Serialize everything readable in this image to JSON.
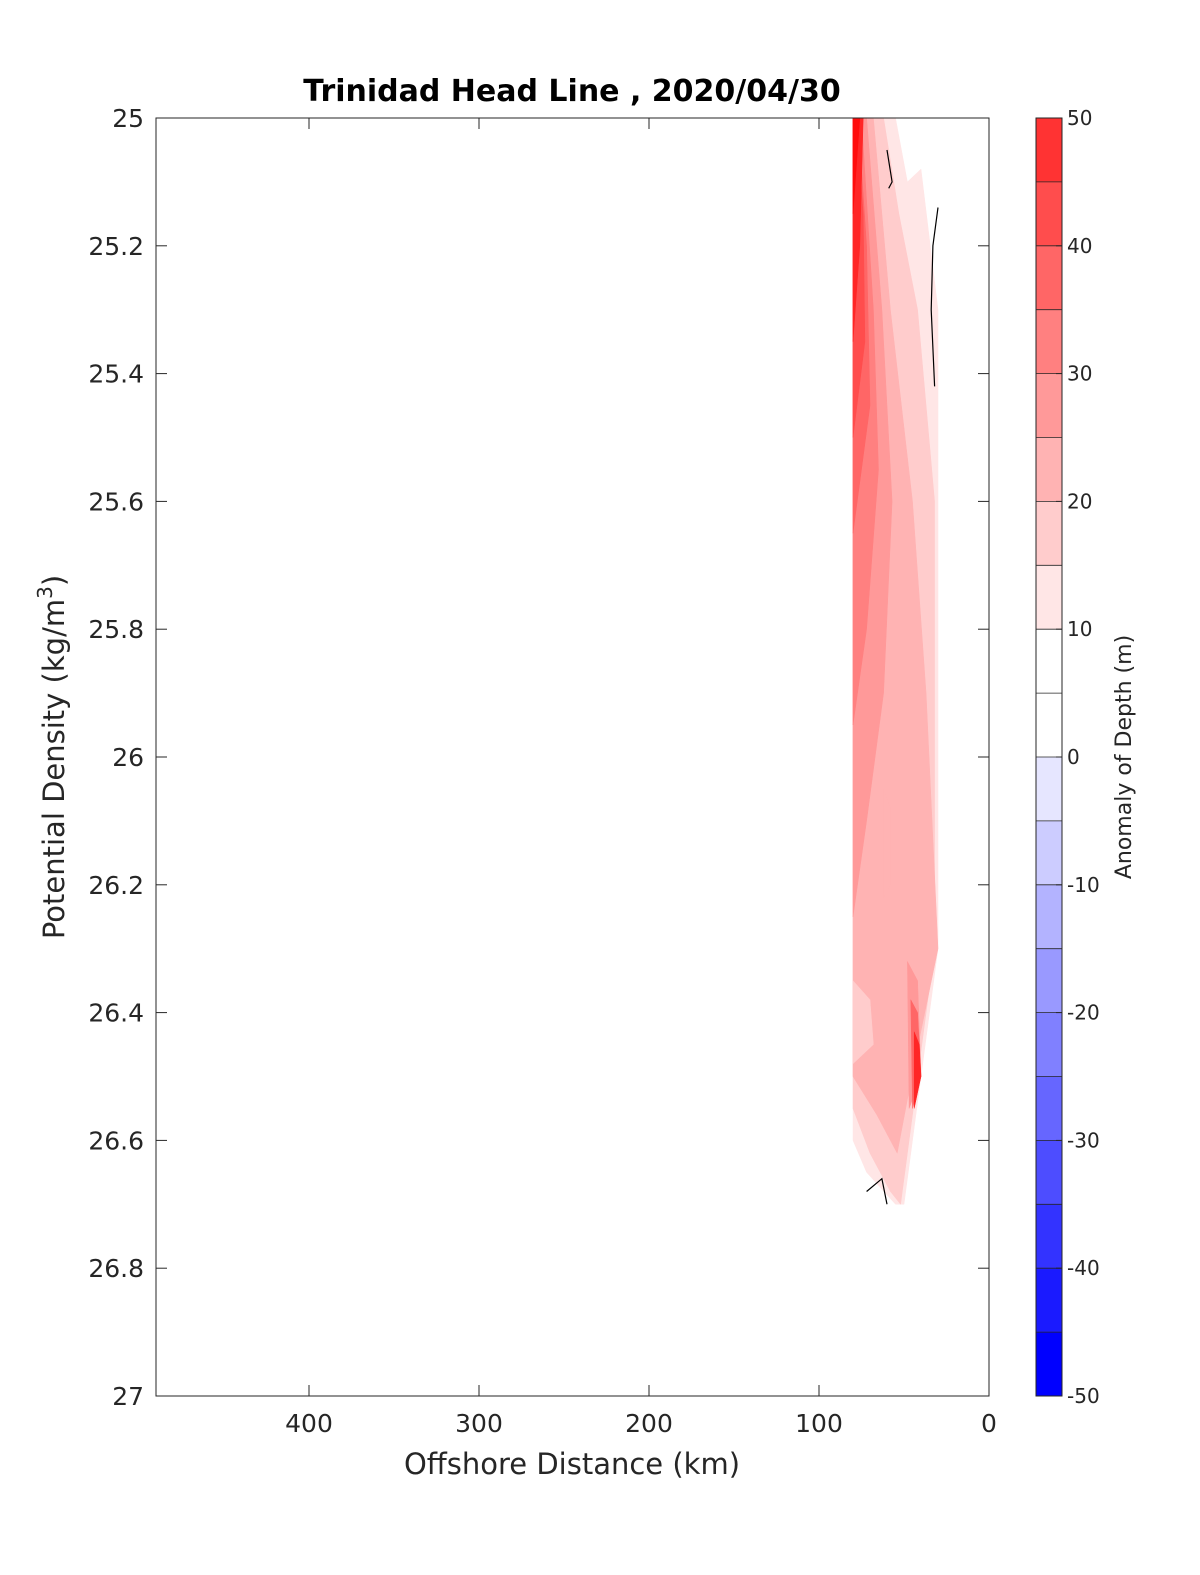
{
  "chart_data": {
    "type": "contour",
    "title": "Trinidad Head Line , 2020/04/30",
    "xlabel": "Offshore Distance (km)",
    "ylabel_main": "Potential Density (kg/m",
    "ylabel_sup": "3",
    "ylabel_end": ")",
    "colorbar_label": "Anomaly of Depth (m)",
    "xlim": [
      490,
      0
    ],
    "ylim": [
      27,
      25
    ],
    "x_reversed": true,
    "y_reversed": true,
    "x_ticks": [
      400,
      300,
      200,
      100,
      0
    ],
    "x_tick_labels": [
      "400",
      "300",
      "200",
      "100",
      "0"
    ],
    "y_ticks": [
      25,
      25.2,
      25.4,
      25.6,
      25.8,
      26,
      26.2,
      26.4,
      26.6,
      26.8,
      27
    ],
    "y_tick_labels": [
      "25",
      "25.2",
      "25.4",
      "25.6",
      "25.8",
      "26",
      "26.2",
      "26.4",
      "26.6",
      "26.8",
      "27"
    ],
    "colorbar": {
      "clim": [
        -50,
        50
      ],
      "levels": [
        -50,
        -45,
        -40,
        -35,
        -30,
        -25,
        -20,
        -15,
        -10,
        -5,
        0,
        5,
        10,
        15,
        20,
        25,
        30,
        35,
        40,
        45,
        50
      ],
      "colors": [
        "#0000ff",
        "#1a1aff",
        "#3333ff",
        "#4d4dff",
        "#6666ff",
        "#8080ff",
        "#9999ff",
        "#b3b3ff",
        "#ccccff",
        "#e6e6ff",
        "#ffffff",
        "#ffffff",
        "#ffe6e6",
        "#ffcccc",
        "#ffb3b3",
        "#ff9999",
        "#ff8080",
        "#ff6666",
        "#ff4d4d",
        "#ff3333",
        "#ff1a1a",
        "#ff0000"
      ],
      "tick_values": [
        50,
        40,
        30,
        20,
        10,
        0,
        -10,
        -20,
        -30,
        -40,
        -50
      ],
      "tick_labels": [
        "50",
        "40",
        "30",
        "20",
        "10",
        "0",
        "-10",
        "-20",
        "-30",
        "-40",
        "-50"
      ]
    },
    "bands": [
      {
        "level": 10,
        "color": "#ffe6e6",
        "polygon": [
          [
            80,
            25.0
          ],
          [
            55,
            25.0
          ],
          [
            48,
            25.1
          ],
          [
            40,
            25.08
          ],
          [
            30,
            25.3
          ],
          [
            30,
            26.3
          ],
          [
            40,
            26.5
          ],
          [
            50,
            26.7
          ],
          [
            55,
            26.7
          ],
          [
            72,
            26.65
          ],
          [
            80,
            26.6
          ]
        ]
      },
      {
        "level": 15,
        "color": "#ffcccc",
        "polygon": [
          [
            80,
            25.0
          ],
          [
            62,
            25.0
          ],
          [
            53,
            25.15
          ],
          [
            42,
            25.3
          ],
          [
            32,
            25.6
          ],
          [
            32,
            26.3
          ],
          [
            42,
            26.5
          ],
          [
            52,
            26.7
          ],
          [
            58,
            26.68
          ],
          [
            70,
            26.62
          ],
          [
            80,
            26.55
          ]
        ]
      },
      {
        "level": 20,
        "color": "#ffb3b3",
        "polygon": [
          [
            80,
            25.0
          ],
          [
            68,
            25.0
          ],
          [
            58,
            25.3
          ],
          [
            45,
            25.6
          ],
          [
            37,
            25.9
          ],
          [
            30,
            26.3
          ],
          [
            44,
            26.48
          ],
          [
            54,
            26.62
          ],
          [
            66,
            26.56
          ],
          [
            80,
            26.5
          ]
        ]
      },
      {
        "level": 25,
        "color": "#ff9999",
        "polygon": [
          [
            80,
            25.0
          ],
          [
            72,
            25.0
          ],
          [
            63,
            25.3
          ],
          [
            57,
            25.6
          ],
          [
            62,
            25.9
          ],
          [
            72,
            26.1
          ],
          [
            80,
            26.25
          ]
        ]
      },
      {
        "level": 30,
        "color": "#ff8080",
        "polygon": [
          [
            80,
            25.0
          ],
          [
            75,
            25.0
          ],
          [
            68,
            25.3
          ],
          [
            65,
            25.55
          ],
          [
            72,
            25.8
          ],
          [
            80,
            25.95
          ]
        ]
      },
      {
        "level": 35,
        "color": "#ff6666",
        "polygon": [
          [
            80,
            25.0
          ],
          [
            77,
            25.0
          ],
          [
            72,
            25.2
          ],
          [
            70,
            25.45
          ],
          [
            80,
            25.65
          ]
        ]
      },
      {
        "level": 40,
        "color": "#ff4d4d",
        "polygon": [
          [
            80,
            25.0
          ],
          [
            78,
            25.0
          ],
          [
            74,
            25.15
          ],
          [
            73,
            25.35
          ],
          [
            80,
            25.5
          ]
        ]
      },
      {
        "level": 45,
        "color": "#ff2626",
        "polygon": [
          [
            80,
            25.0
          ],
          [
            74,
            25.0
          ],
          [
            76,
            25.2
          ],
          [
            80,
            25.35
          ]
        ]
      },
      {
        "level": 50,
        "color": "#ff0d0d",
        "polygon": [
          [
            80,
            25.0
          ],
          [
            76,
            25.0
          ],
          [
            80,
            25.15
          ]
        ]
      },
      {
        "level": 15,
        "color": "#ffcccc",
        "polygon": [
          [
            80,
            26.35
          ],
          [
            70,
            26.38
          ],
          [
            68,
            26.45
          ],
          [
            80,
            26.48
          ]
        ]
      },
      {
        "level": 20,
        "color": "#ffb3b3",
        "polygon": [
          [
            62,
            26.05
          ],
          [
            58,
            26.08
          ],
          [
            58,
            26.2
          ],
          [
            62,
            26.22
          ]
        ]
      },
      {
        "level": 25,
        "color": "#ff9999",
        "polygon": [
          [
            48,
            26.32
          ],
          [
            42,
            26.35
          ],
          [
            40,
            26.5
          ],
          [
            47,
            26.55
          ]
        ]
      },
      {
        "level": 35,
        "color": "#ff6666",
        "polygon": [
          [
            46,
            26.38
          ],
          [
            42,
            26.4
          ],
          [
            40,
            26.5
          ],
          [
            45,
            26.55
          ]
        ]
      },
      {
        "level": 45,
        "color": "#ff2626",
        "polygon": [
          [
            44,
            26.43
          ],
          [
            41,
            26.45
          ],
          [
            40,
            26.5
          ],
          [
            44,
            26.55
          ]
        ]
      }
    ],
    "zero_contours": [
      [
        [
          60,
          25.05
        ],
        [
          57,
          25.1
        ],
        [
          59,
          25.11
        ]
      ],
      [
        [
          30,
          25.14
        ],
        [
          33,
          25.2
        ],
        [
          34,
          25.3
        ],
        [
          32,
          25.42
        ]
      ],
      [
        [
          72,
          26.68
        ],
        [
          63,
          26.66
        ],
        [
          60,
          26.7
        ]
      ]
    ]
  }
}
